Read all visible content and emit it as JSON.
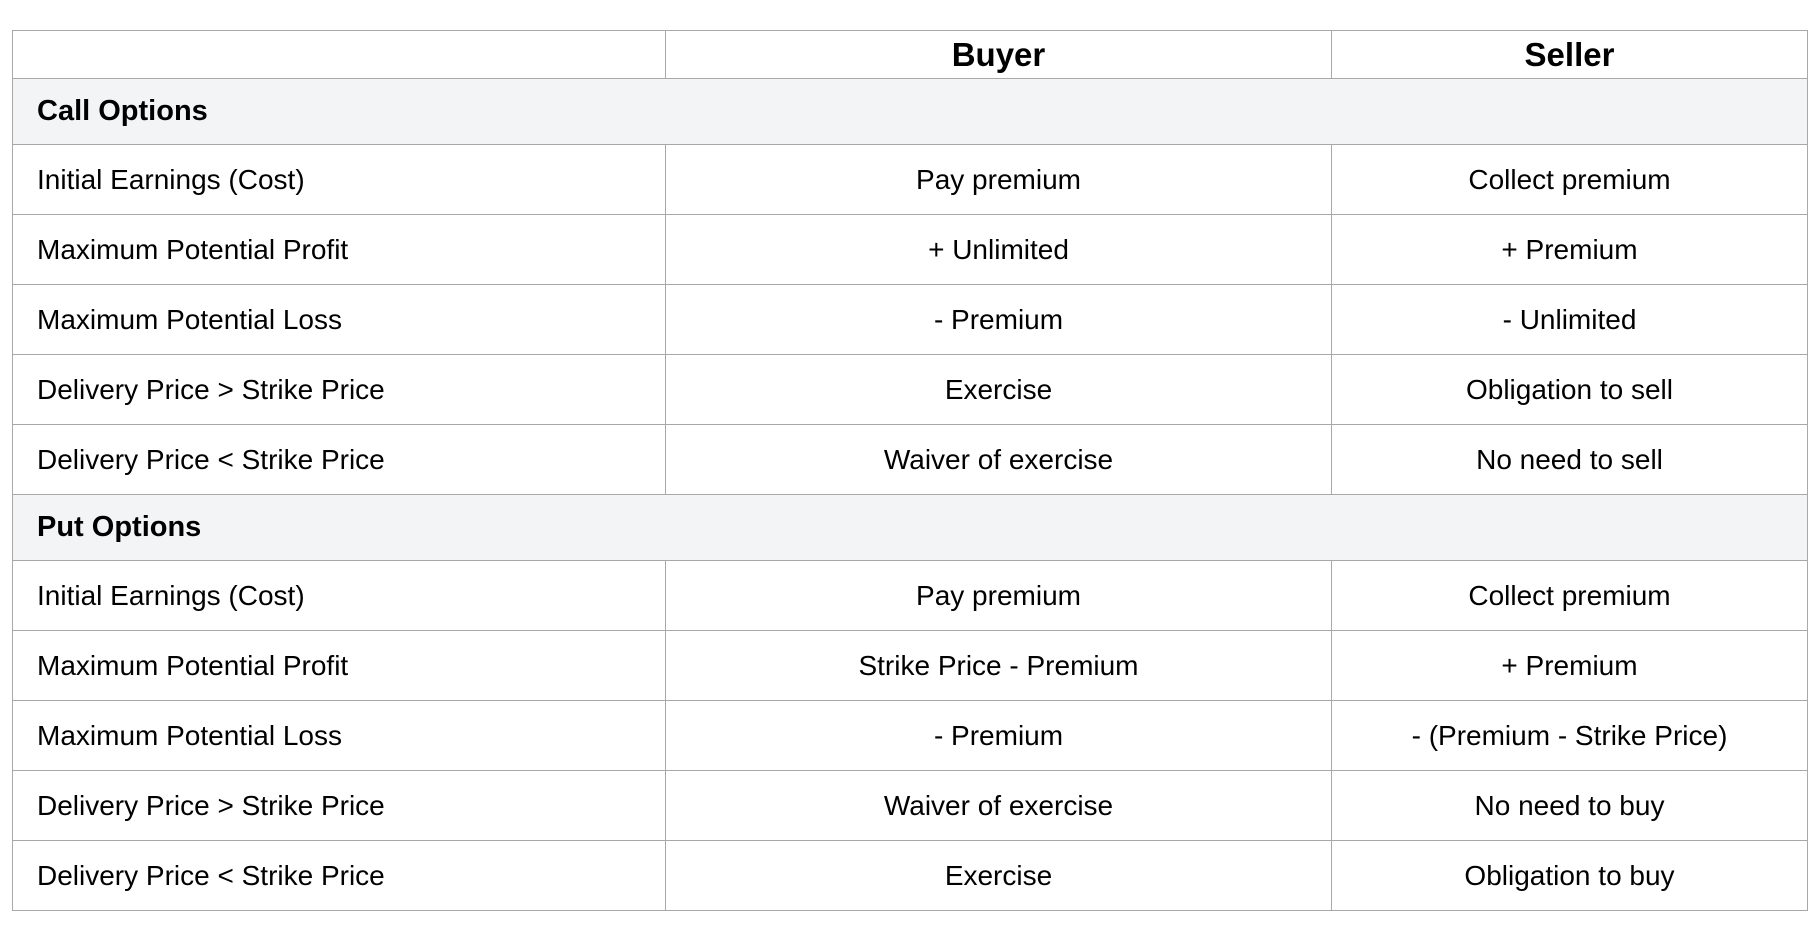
{
  "table": {
    "columns": [
      "",
      "Buyer",
      "Seller"
    ],
    "sections": [
      {
        "title": "Call Options",
        "rows": [
          {
            "label": "Initial Earnings (Cost)",
            "buyer": "Pay premium",
            "seller": "Collect premium"
          },
          {
            "label": "Maximum Potential Profit",
            "buyer": "+ Unlimited",
            "seller": "+ Premium"
          },
          {
            "label": "Maximum Potential Loss",
            "buyer": "- Premium",
            "seller": "- Unlimited"
          },
          {
            "label": "Delivery Price > Strike Price",
            "buyer": "Exercise",
            "seller": "Obligation to sell"
          },
          {
            "label": "Delivery Price < Strike Price",
            "buyer": "Waiver of exercise",
            "seller": "No need to sell"
          }
        ]
      },
      {
        "title": "Put Options",
        "rows": [
          {
            "label": "Initial Earnings (Cost)",
            "buyer": "Pay premium",
            "seller": "Collect premium"
          },
          {
            "label": "Maximum Potential Profit",
            "buyer": "Strike Price - Premium",
            "seller": "+ Premium"
          },
          {
            "label": "Maximum Potential Loss",
            "buyer": "- Premium",
            "seller": "- (Premium - Strike Price)"
          },
          {
            "label": "Delivery Price > Strike Price",
            "buyer": "Waiver of exercise",
            "seller": "No need to buy"
          },
          {
            "label": "Delivery Price < Strike Price",
            "buyer": "Exercise",
            "seller": "Obligation to buy"
          }
        ]
      }
    ],
    "colors": {
      "section_bg": "#f3f4f6",
      "border": "#a8a8a8",
      "text": "#000000",
      "background": "#ffffff"
    }
  }
}
